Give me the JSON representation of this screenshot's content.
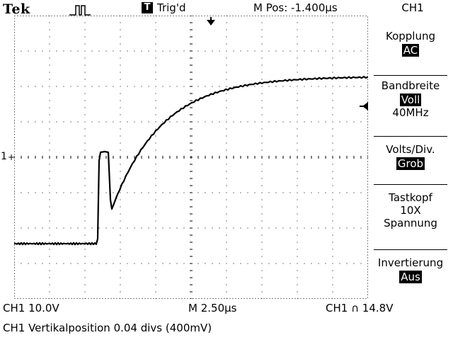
{
  "header": {
    "brand": "Tek",
    "trigger_icon": "pulse-trigger-icon",
    "trigger_mode_badge": "T",
    "trigger_status": "Trig'd",
    "position": "M Pos: -1.400µs"
  },
  "menu": {
    "title": "CH1",
    "items": [
      {
        "label": "Kopplung",
        "value": "AC"
      },
      {
        "label": "Bandbreite",
        "value": "Voll",
        "extra": "40MHz"
      },
      {
        "label": "Volts/Div.",
        "value": "Grob"
      },
      {
        "label": "Tastkopf",
        "value": "10X",
        "extra": "Spannung"
      },
      {
        "label": "Invertierung",
        "value": "Aus"
      }
    ]
  },
  "screen": {
    "ground_marker": "1",
    "waveform_description": "CH1 trace"
  },
  "status": {
    "ch_scale": "CH1  10.0V",
    "timebase": "M 2.50µs",
    "trigger_setting": "CH1 ∩ 14.8V",
    "message": "CH1 Vertikalposition 0.04 divs (400mV)"
  },
  "colors": {
    "background": "#ffffff",
    "trace": "#000000",
    "grid": "#000000"
  }
}
